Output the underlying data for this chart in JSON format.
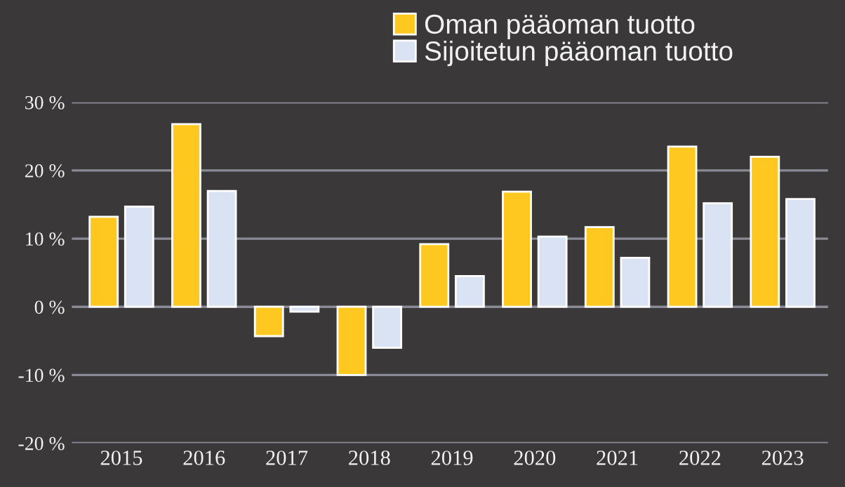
{
  "chart_data": {
    "type": "bar",
    "categories": [
      "2015",
      "2016",
      "2017",
      "2018",
      "2019",
      "2020",
      "2021",
      "2022",
      "2023"
    ],
    "series": [
      {
        "name": "Oman pääoman tuotto",
        "color": "#ffc820",
        "values": [
          13.2,
          26.8,
          -4.3,
          -10.0,
          9.2,
          16.9,
          11.7,
          23.5,
          22.0
        ]
      },
      {
        "name": "Sijoitetun pääoman tuotto",
        "color": "#dae3f3",
        "values": [
          14.7,
          17.0,
          -0.7,
          -6.0,
          4.5,
          10.3,
          7.2,
          15.2,
          15.8
        ]
      }
    ],
    "ylim": [
      -20,
      30
    ],
    "yticks": [
      {
        "value": -20,
        "label": "-20 %"
      },
      {
        "value": -10,
        "label": "-10 %"
      },
      {
        "value": 0,
        "label": "0 %"
      },
      {
        "value": 10,
        "label": "10 %"
      },
      {
        "value": 20,
        "label": "20 %"
      },
      {
        "value": 30,
        "label": "30 %"
      }
    ],
    "grid": "y",
    "legend": "top"
  }
}
